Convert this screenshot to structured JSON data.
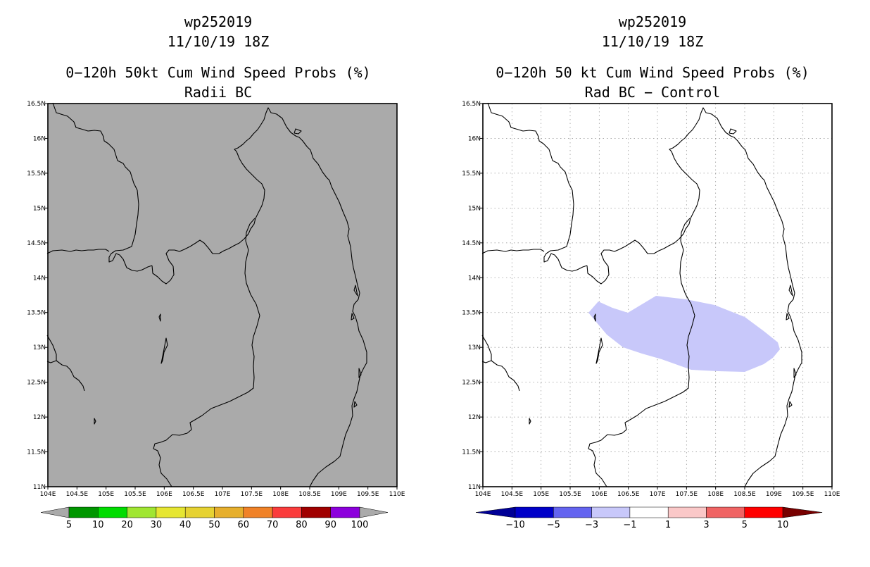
{
  "left": {
    "storm_id": "wp252019",
    "datetime": "11/10/19 18Z",
    "product": "0−120h 50kt Cum Wind Speed Probs (%)",
    "subtitle": "Radii BC",
    "field_fill": "#aaaaaa",
    "colorbar": {
      "colors": [
        "#009600",
        "#00dc00",
        "#a0e632",
        "#e6e632",
        "#e6d232",
        "#e6af2d",
        "#f08228",
        "#fa3c3c",
        "#a00000",
        "#8c00dc"
      ],
      "labels": [
        "5",
        "10",
        "20",
        "30",
        "40",
        "50",
        "60",
        "70",
        "80",
        "90",
        "100"
      ],
      "arrow_color": "#aaaaaa"
    }
  },
  "right": {
    "storm_id": "wp252019",
    "datetime": "11/10/19 18Z",
    "product": "0−120h 50 kt Cum Wind Speed Probs (%)",
    "subtitle": "Rad BC − Control",
    "anomaly_color": "#c8c8fa",
    "colorbar": {
      "colors": [
        "#0000c8",
        "#6464f0",
        "#c8c8fa",
        "#ffffff",
        "#fac8c8",
        "#f06464",
        "#ff0000"
      ],
      "labels": [
        "−10",
        "−5",
        "−3",
        "−1",
        "1",
        "3",
        "5",
        "10"
      ],
      "arrow_left": "#000096",
      "arrow_right": "#780000"
    }
  },
  "axes": {
    "x_ticks": [
      "104E",
      "104.5E",
      "105E",
      "105.5E",
      "106E",
      "106.5E",
      "107E",
      "107.5E",
      "108E",
      "108.5E",
      "109E",
      "109.5E",
      "110E"
    ],
    "y_ticks": [
      "11N",
      "11.5N",
      "12N",
      "12.5N",
      "13N",
      "13.5N",
      "14N",
      "14.5N",
      "15N",
      "15.5N",
      "16N",
      "16.5N"
    ],
    "lon_range": [
      104,
      110
    ],
    "lat_range": [
      11,
      16.5
    ]
  }
}
